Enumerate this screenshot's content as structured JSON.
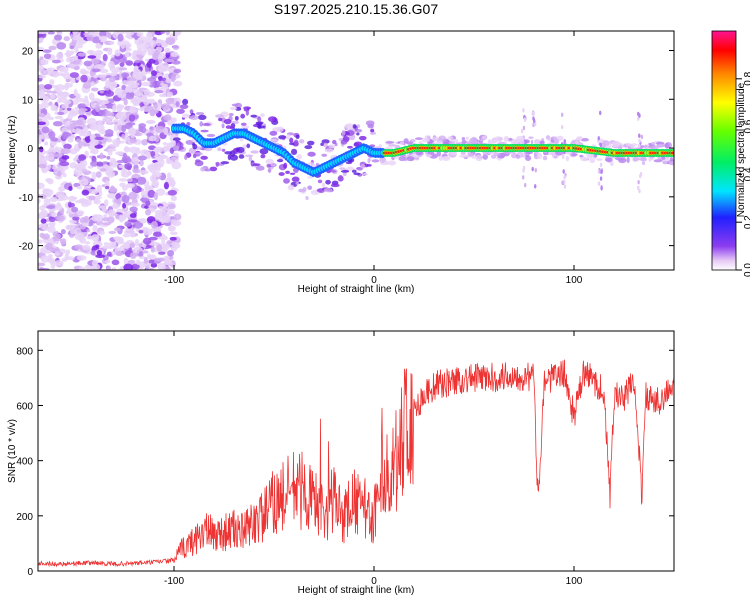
{
  "title": "S197.2025.210.15.36.G07",
  "chart_data": [
    {
      "type": "heatmap",
      "xlabel": "Height of straight line (km)",
      "ylabel": "Frequency (Hz)",
      "xlim": [
        -168,
        150
      ],
      "ylim": [
        -25,
        24
      ],
      "xticks": [
        -100,
        0,
        100
      ],
      "yticks": [
        -20,
        -10,
        0,
        10,
        20
      ],
      "colorbar": {
        "label": "Normalized spectral amplitude",
        "range": [
          0,
          1
        ],
        "ticks": [
          "0.0",
          "0.2",
          "0.4",
          "0.6",
          "0.8"
        ]
      },
      "ridge": {
        "x": [
          -100,
          -95,
          -90,
          -85,
          -80,
          -75,
          -70,
          -65,
          -60,
          -55,
          -50,
          -45,
          -40,
          -35,
          -30,
          -25,
          -20,
          -15,
          -10,
          -5,
          0,
          5,
          10,
          20,
          40,
          60,
          80,
          100,
          120,
          140,
          150
        ],
        "frequency": [
          4,
          4,
          3,
          1,
          1,
          2,
          3,
          3,
          2,
          1,
          0,
          -1,
          -3,
          -4,
          -5,
          -4,
          -3,
          -2,
          -1,
          0,
          -1,
          -1,
          -1,
          0,
          0,
          0,
          0,
          0,
          -1,
          -1,
          -1
        ]
      }
    },
    {
      "type": "line",
      "xlabel": "Height of straight line (km)",
      "ylabel": "SNR (10 * v/v)",
      "xlim": [
        -168,
        150
      ],
      "ylim": [
        0,
        870
      ],
      "xticks": [
        -100,
        0,
        100
      ],
      "yticks": [
        0,
        200,
        400,
        600,
        800
      ],
      "color": "#ee3333",
      "series": [
        {
          "x": [
            -168,
            -160,
            -150,
            -140,
            -130,
            -120,
            -110,
            -100,
            -96,
            -90,
            -85,
            -80,
            -75,
            -70,
            -65,
            -60,
            -55,
            -50,
            -45,
            -40,
            -35,
            -30,
            -25,
            -20,
            -15,
            -10,
            -5,
            0,
            3,
            5,
            8,
            10,
            15,
            20,
            25,
            30,
            40,
            50,
            60,
            70,
            80,
            82,
            85,
            90,
            95,
            100,
            105,
            110,
            115,
            118,
            120,
            125,
            130,
            134,
            136,
            140,
            145,
            150
          ],
          "y": [
            30,
            25,
            28,
            30,
            25,
            28,
            32,
            40,
            80,
            110,
            150,
            130,
            140,
            150,
            140,
            180,
            200,
            250,
            270,
            300,
            290,
            250,
            200,
            260,
            200,
            250,
            230,
            180,
            420,
            380,
            300,
            400,
            500,
            580,
            640,
            670,
            690,
            700,
            700,
            710,
            700,
            240,
            690,
            700,
            720,
            560,
            720,
            690,
            650,
            260,
            640,
            620,
            700,
            270,
            640,
            600,
            640,
            660
          ]
        }
      ]
    }
  ]
}
